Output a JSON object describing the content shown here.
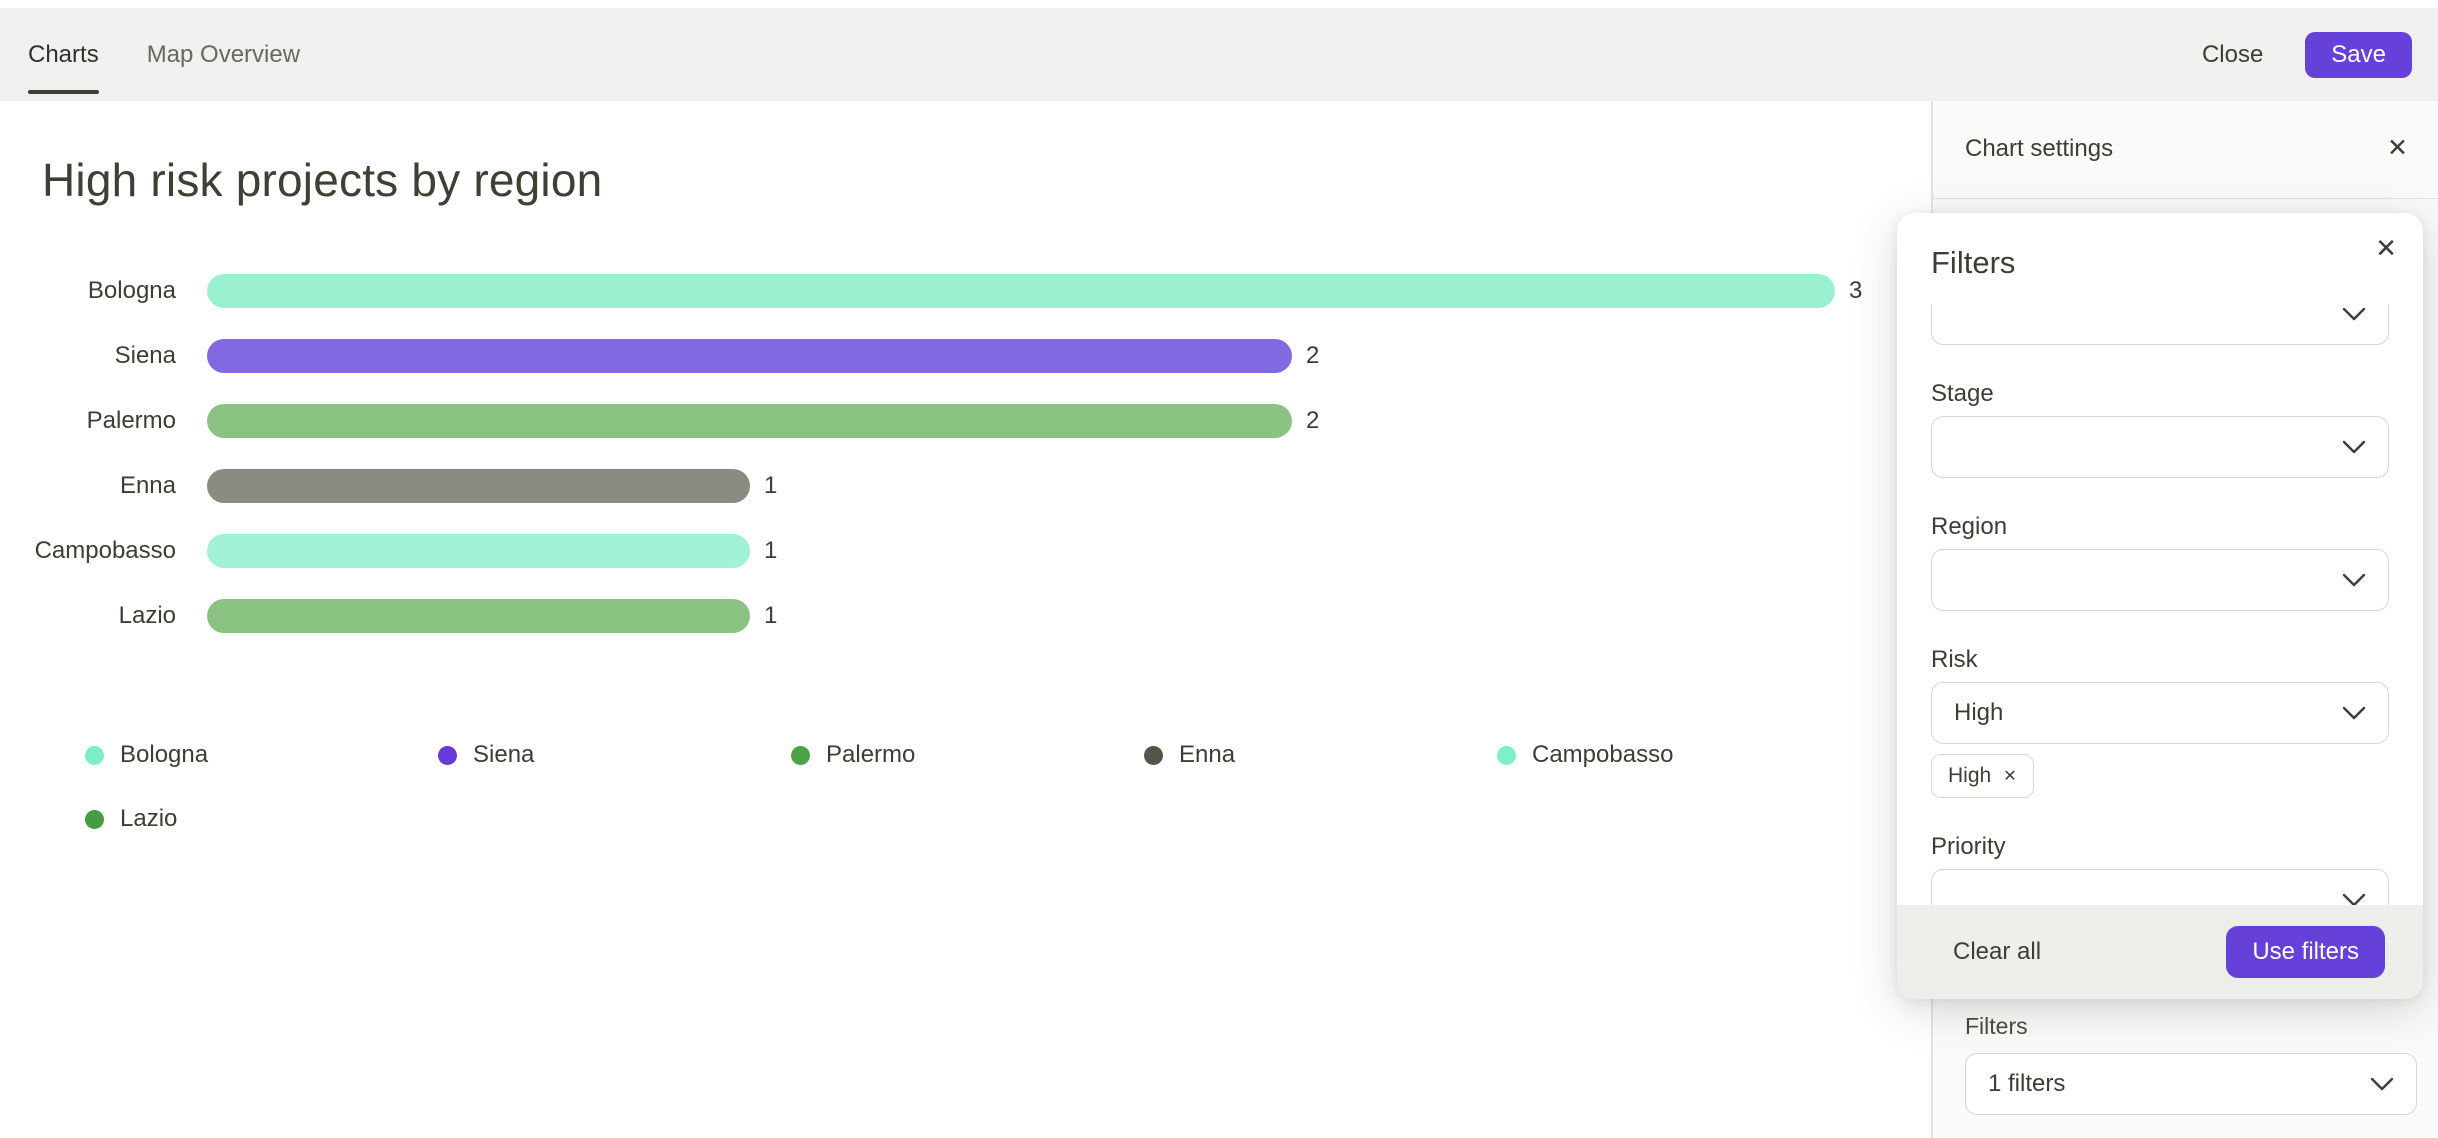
{
  "topbar": {
    "tabs": [
      {
        "label": "Charts"
      },
      {
        "label": "Map Overview"
      }
    ],
    "close_label": "Close",
    "save_label": "Save"
  },
  "chart_data": {
    "type": "bar",
    "orientation": "horizontal",
    "title": "High risk projects by region",
    "categories": [
      "Bologna",
      "Siena",
      "Palermo",
      "Enna",
      "Campobasso",
      "Lazio"
    ],
    "values": [
      3,
      2,
      2,
      1,
      1,
      1
    ],
    "xlim": [
      0,
      3
    ],
    "value_labels": true,
    "bar_colors": [
      "#9bf0cf",
      "#8269e2",
      "#8ac381",
      "#8b8b81",
      "#a1f2d4",
      "#8ac381"
    ],
    "legend_colors": [
      "#7dedc3",
      "#6539da",
      "#4ea246",
      "#55554b",
      "#80efc9",
      "#469c41"
    ],
    "legend_position": "bottom",
    "grid": false
  },
  "sidebar": {
    "title": "Chart settings",
    "close_icon": "✕",
    "filters_label": "Filters",
    "filters_value": "1 filters"
  },
  "filters_modal": {
    "title": "Filters",
    "close_icon": "✕",
    "fields": [
      {
        "label": "Stage",
        "value": ""
      },
      {
        "label": "Region",
        "value": ""
      },
      {
        "label": "Risk",
        "value": "High"
      },
      {
        "label": "Priority",
        "value": ""
      }
    ],
    "risk_chip": {
      "label": "High",
      "remove_icon": "✕"
    },
    "clear_label": "Clear all",
    "apply_label": "Use filters"
  },
  "colors": {
    "accent_purple": "#6641d9",
    "topbar_bg": "#f0f0ee",
    "text_dark": "#3c3e35"
  }
}
